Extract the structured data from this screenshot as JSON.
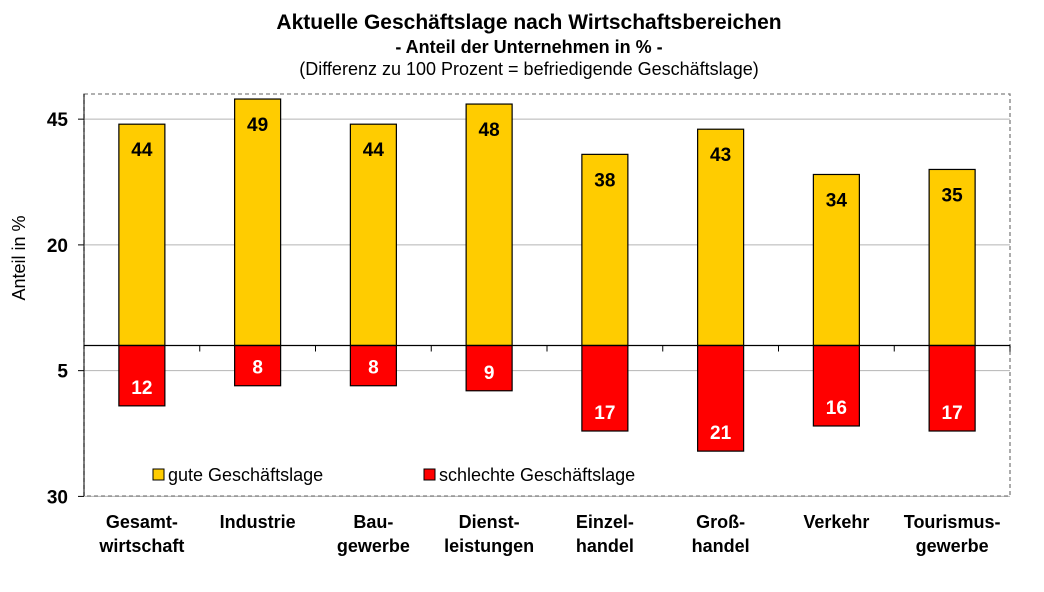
{
  "chart_data": {
    "type": "bar",
    "title": "Aktuelle Geschäftslage nach Wirtschaftsbereichen",
    "subtitle": "- Anteil der Unternehmen in % -",
    "note": "(Differenz zu 100 Prozent = befriedigende Geschäftslage)",
    "ylabel": "Anteil in %",
    "yticks": [
      {
        "label": "45",
        "value": 45
      },
      {
        "label": "20",
        "value": 20
      },
      {
        "label": "5",
        "value": -5
      },
      {
        "label": "30",
        "value": -30
      }
    ],
    "ylim": [
      -30,
      50
    ],
    "grid": true,
    "legend_position": "bottom-left inside plot",
    "categories": [
      [
        "Gesamt-",
        "wirtschaft"
      ],
      [
        "Industrie"
      ],
      [
        "Bau-",
        "gewerbe"
      ],
      [
        "Dienst-",
        "leistungen"
      ],
      [
        "Einzel-",
        "handel"
      ],
      [
        "Groß-",
        "handel"
      ],
      [
        "Verkehr"
      ],
      [
        "Tourismus-",
        "gewerbe"
      ]
    ],
    "series": [
      {
        "name": "gute Geschäftslage",
        "color": "#FFCC00",
        "direction": "up",
        "values": [
          44,
          49,
          44,
          48,
          38,
          43,
          34,
          35
        ]
      },
      {
        "name": "schlechte Geschäftslage",
        "color": "#FF0000",
        "direction": "down",
        "values": [
          12,
          8,
          8,
          9,
          17,
          21,
          16,
          17
        ]
      }
    ],
    "label_colors": {
      "gute Geschäftslage": "#000000",
      "schlechte Geschäftslage": "#ffffff"
    }
  }
}
